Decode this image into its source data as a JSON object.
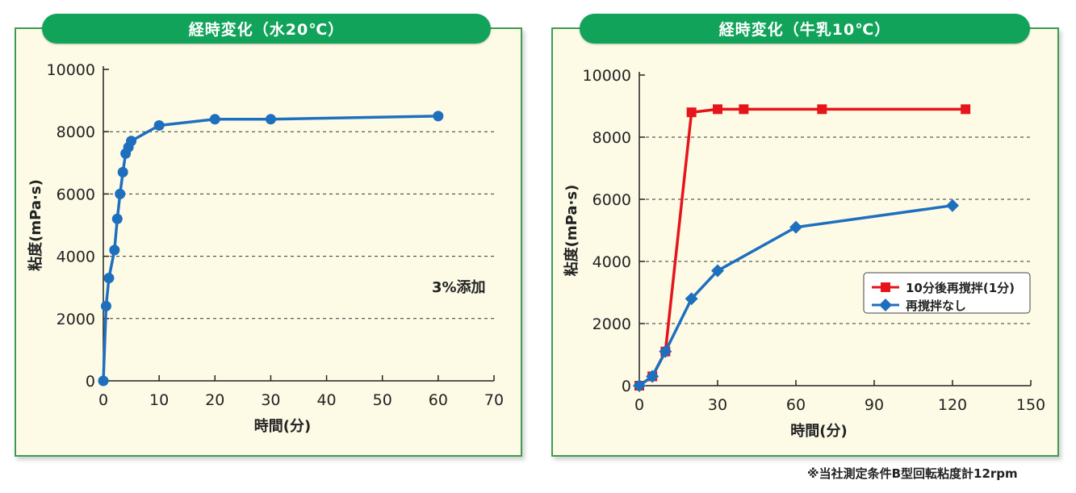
{
  "chart_data": [
    {
      "type": "line",
      "title": "経時変化（水20℃）",
      "xlabel": "時間(分)",
      "ylabel": "粘度(mPa·s)",
      "xlim": [
        0,
        70
      ],
      "ylim": [
        0,
        10000
      ],
      "xticks": [
        0,
        10,
        20,
        30,
        40,
        50,
        60,
        70
      ],
      "yticks": [
        0,
        2000,
        4000,
        6000,
        8000,
        10000
      ],
      "grid": "dashed horizontal",
      "annotation": "3%添加",
      "series": [
        {
          "color": "#1f6fbf",
          "marker": "circle",
          "x": [
            0,
            0.5,
            1,
            2,
            2.5,
            3,
            3.5,
            4,
            4.5,
            5,
            10,
            20,
            30,
            60
          ],
          "y": [
            0,
            2400,
            3300,
            4200,
            5200,
            6000,
            6700,
            7300,
            7500,
            7700,
            8200,
            8400,
            8400,
            8500
          ]
        }
      ]
    },
    {
      "type": "line",
      "title": "経時変化（牛乳10℃）",
      "xlabel": "時間(分)",
      "ylabel": "粘度(mPa·s)",
      "xlim": [
        0,
        150
      ],
      "ylim": [
        0,
        10000
      ],
      "xticks": [
        0,
        30,
        60,
        90,
        120,
        150
      ],
      "yticks": [
        0,
        2000,
        4000,
        6000,
        8000,
        10000
      ],
      "grid": "dashed horizontal",
      "legend": "inside right",
      "series": [
        {
          "name": "10分後再撹拌(1分)",
          "color": "#e6151b",
          "marker": "square",
          "x": [
            0,
            5,
            10,
            20,
            30,
            40,
            70,
            125
          ],
          "y": [
            0,
            300,
            1100,
            8800,
            8900,
            8900,
            8900,
            8900
          ]
        },
        {
          "name": "再撹拌なし",
          "color": "#1f6fbf",
          "marker": "diamond",
          "x": [
            0,
            5,
            10,
            20,
            30,
            60,
            120
          ],
          "y": [
            0,
            300,
            1100,
            2800,
            3700,
            5100,
            5800
          ]
        }
      ]
    }
  ],
  "footnote": "※当社測定条件B型回転粘度計12rpm"
}
